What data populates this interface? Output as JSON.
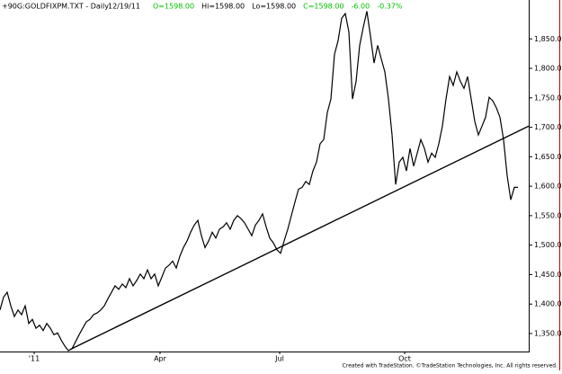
{
  "chart_data": {
    "type": "line",
    "title": "+90G:GOLDFIXPM.TXT - Daily",
    "date": "12/19/11",
    "quote": [
      {
        "text": "O=1598.00",
        "color": "#00c000"
      },
      {
        "text": "Hi=1598.00",
        "color": "#000000"
      },
      {
        "text": "Lo=1598.00",
        "color": "#000000"
      },
      {
        "text": "C=1598.00",
        "color": "#00c000"
      },
      {
        "text": "-6.00",
        "color": "#00c000"
      },
      {
        "text": "-0.37%",
        "color": "#00c000"
      }
    ],
    "footer": "Created with TradeStation. ©TradeStation Technologies, Inc. All rights reserved.",
    "x": [
      0,
      2,
      4,
      6,
      8,
      10,
      12,
      14,
      16,
      18,
      20,
      22,
      24,
      26,
      28,
      30,
      32,
      34,
      36,
      38,
      40,
      42,
      44,
      46,
      48,
      50,
      52,
      54,
      56,
      58,
      60,
      62,
      64,
      66,
      68,
      70,
      72,
      74,
      76,
      78,
      80,
      82,
      84,
      86,
      88,
      90,
      92,
      94,
      96,
      98,
      100,
      102,
      104,
      106,
      108,
      110,
      112,
      114,
      116,
      118,
      120,
      122,
      124,
      126,
      128,
      130,
      132,
      134,
      136,
      138,
      140,
      142,
      144,
      146,
      148,
      150,
      152,
      154,
      156,
      158,
      160,
      162,
      164,
      166,
      168,
      170,
      172,
      174,
      176,
      178,
      180,
      182,
      184,
      186,
      188,
      190,
      192,
      194,
      196,
      198,
      200,
      202,
      204,
      206,
      208,
      210,
      212,
      214,
      216,
      218,
      220,
      222,
      224,
      226,
      228,
      230,
      232,
      234,
      236,
      238,
      240,
      242,
      244,
      246,
      248,
      250,
      252,
      254,
      256,
      258,
      260,
      262,
      264,
      266,
      268,
      270,
      272,
      274,
      276,
      278,
      280,
      282,
      284,
      286,
      288
    ],
    "series": [
      {
        "color": "#000000",
        "values": [
          1390,
          1412,
          1420,
          1397,
          1379,
          1390,
          1382,
          1397,
          1367,
          1374,
          1359,
          1364,
          1355,
          1367,
          1359,
          1348,
          1351,
          1339,
          1329,
          1321,
          1324,
          1336,
          1348,
          1359,
          1370,
          1374,
          1382,
          1385,
          1390,
          1397,
          1409,
          1420,
          1431,
          1425,
          1434,
          1428,
          1443,
          1431,
          1440,
          1451,
          1443,
          1458,
          1443,
          1451,
          1431,
          1446,
          1461,
          1466,
          1473,
          1461,
          1481,
          1496,
          1507,
          1522,
          1534,
          1542,
          1516,
          1496,
          1507,
          1522,
          1512,
          1527,
          1531,
          1538,
          1527,
          1542,
          1550,
          1545,
          1538,
          1527,
          1516,
          1534,
          1542,
          1553,
          1531,
          1512,
          1504,
          1492,
          1486,
          1507,
          1527,
          1550,
          1573,
          1595,
          1598,
          1608,
          1603,
          1626,
          1641,
          1672,
          1679,
          1725,
          1748,
          1824,
          1847,
          1885,
          1893,
          1862,
          1748,
          1778,
          1839,
          1870,
          1897,
          1855,
          1809,
          1839,
          1816,
          1794,
          1748,
          1687,
          1603,
          1641,
          1649,
          1626,
          1664,
          1634,
          1656,
          1679,
          1664,
          1641,
          1656,
          1649,
          1672,
          1702,
          1748,
          1786,
          1771,
          1794,
          1778,
          1766,
          1786,
          1748,
          1710,
          1687,
          1702,
          1717,
          1751,
          1745,
          1733,
          1717,
          1679,
          1618,
          1577,
          1598,
          1598
        ]
      }
    ],
    "trendline": {
      "color": "#000000",
      "x": [
        39,
        294
      ],
      "values": [
        1323,
        1702
      ]
    },
    "xlim": [
      0,
      294
    ],
    "xticks": [
      {
        "value": 19,
        "label": "'11"
      },
      {
        "value": 89,
        "label": "Apr"
      },
      {
        "value": 155.5,
        "label": "Jul"
      },
      {
        "value": 225,
        "label": "Oct"
      }
    ],
    "ylim": [
      1321,
      1916
    ],
    "yticks": [
      {
        "value": 1350,
        "label": "1,350.00"
      },
      {
        "value": 1400,
        "label": "1,400.00"
      },
      {
        "value": 1450,
        "label": "1,450.00"
      },
      {
        "value": 1500,
        "label": "1,500.00"
      },
      {
        "value": 1550,
        "label": "1,550.00"
      },
      {
        "value": 1600,
        "label": "1,600.00"
      },
      {
        "value": 1650,
        "label": "1,650.00"
      },
      {
        "value": 1700,
        "label": "1,700.00"
      },
      {
        "value": 1750,
        "label": "1,750.00"
      },
      {
        "value": 1800,
        "label": "1,800.00"
      },
      {
        "value": 1850,
        "label": "1,850.00"
      }
    ],
    "grid": false
  }
}
